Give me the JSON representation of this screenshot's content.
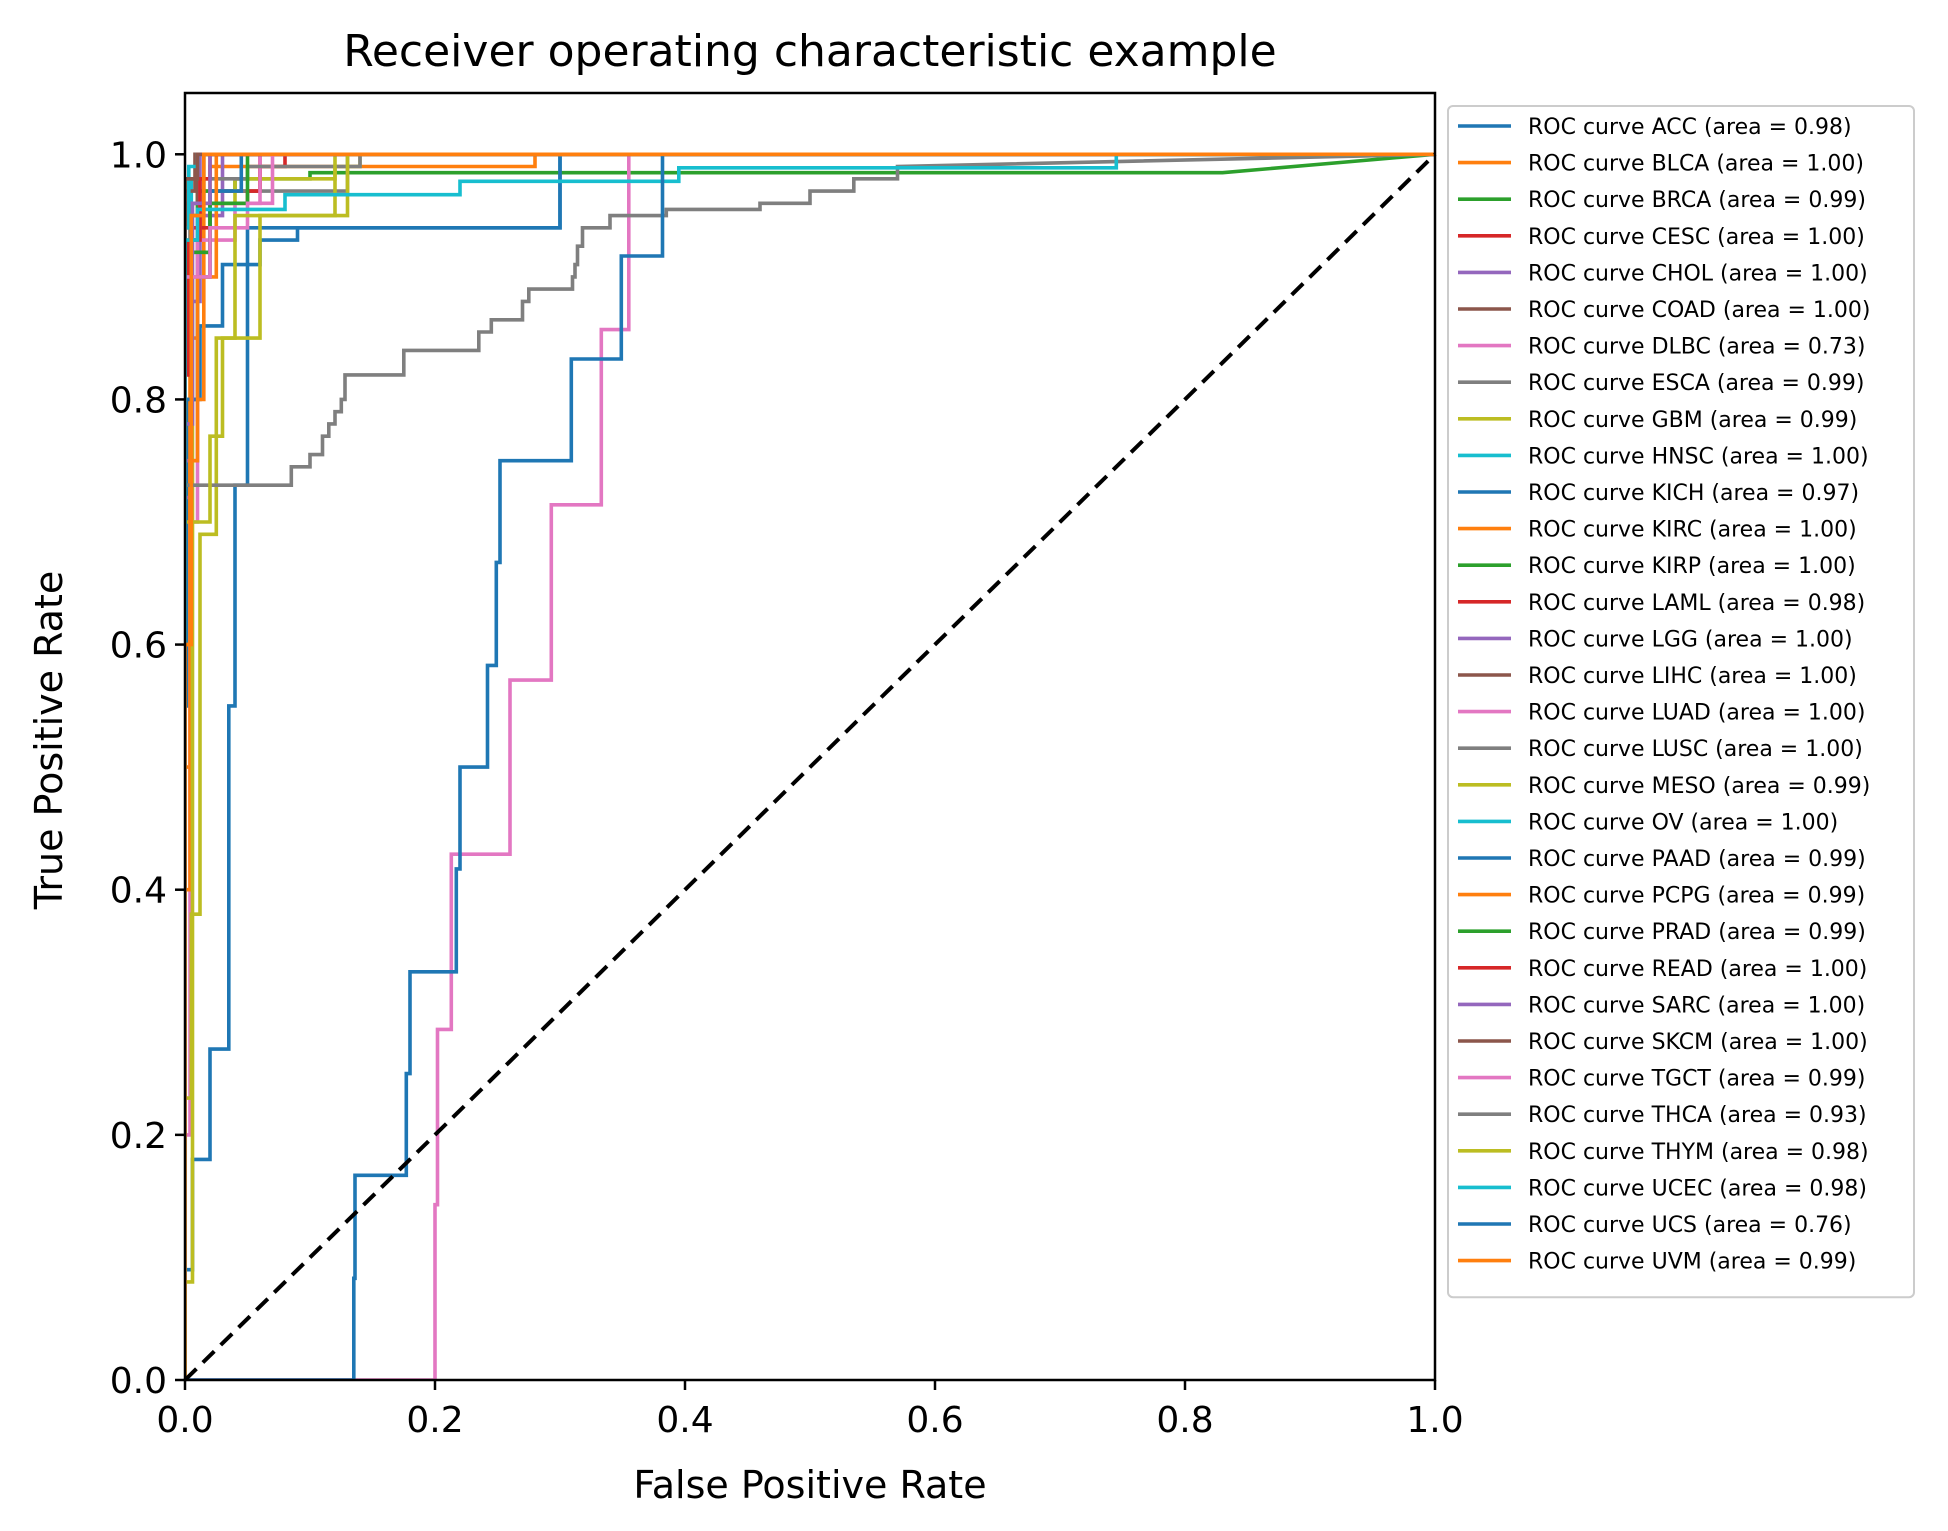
{
  "chart_data": {
    "type": "line",
    "title": "Receiver operating characteristic example",
    "xlabel": "False Positive Rate",
    "ylabel": "True Positive Rate",
    "xlim": [
      0.0,
      1.0
    ],
    "ylim": [
      0.0,
      1.05
    ],
    "xticks": [
      "0.0",
      "0.2",
      "0.4",
      "0.6",
      "0.8",
      "1.0"
    ],
    "yticks": [
      "0.0",
      "0.2",
      "0.4",
      "0.6",
      "0.8",
      "1.0"
    ],
    "grid": false,
    "legend_position": "outside-right",
    "reference_line": {
      "x": [
        0,
        1
      ],
      "y": [
        0,
        1
      ],
      "color": "#000000",
      "style": "dashed"
    },
    "series": [
      {
        "name": "ROC curve ACC (area = 0.98)",
        "color": "#1f77b4",
        "x": [
          0,
          0,
          0.003,
          0.003,
          0.012,
          0.012,
          0.03,
          0.03,
          0.06,
          0.06,
          0.09,
          0.09,
          0.3,
          0.3,
          1.0
        ],
        "y": [
          0,
          0.55,
          0.55,
          0.8,
          0.8,
          0.86,
          0.86,
          0.91,
          0.91,
          0.93,
          0.93,
          0.94,
          0.94,
          1.0,
          1.0
        ]
      },
      {
        "name": "ROC curve BLCA (area = 1.00)",
        "color": "#ff7f0e",
        "x": [
          0,
          0,
          0.004,
          0.004,
          0.01,
          0.01,
          0.02,
          0.02,
          0.28,
          0.28,
          1.0
        ],
        "y": [
          0,
          0.6,
          0.6,
          0.85,
          0.85,
          0.97,
          0.97,
          0.99,
          0.99,
          1.0,
          1.0
        ]
      },
      {
        "name": "ROC curve BRCA (area = 0.99)",
        "color": "#2ca02c",
        "x": [
          0,
          0,
          0.01,
          0.01,
          0.04,
          0.04,
          0.1,
          0.1,
          0.83,
          1.0
        ],
        "y": [
          0,
          0.95,
          0.95,
          0.97,
          0.97,
          0.98,
          0.98,
          0.985,
          0.985,
          1.0
        ]
      },
      {
        "name": "ROC curve CESC (area = 1.00)",
        "color": "#d62728",
        "x": [
          0,
          0,
          0.005,
          0.005,
          0.012,
          0.012,
          0.02,
          0.02,
          0.06,
          0.06,
          0.08,
          0.08,
          1.0
        ],
        "y": [
          0,
          0.88,
          0.88,
          0.93,
          0.93,
          0.96,
          0.96,
          0.97,
          0.97,
          0.99,
          0.99,
          1.0,
          1.0
        ]
      },
      {
        "name": "ROC curve CHOL (area = 1.00)",
        "color": "#9467bd",
        "x": [
          0,
          0,
          0.01,
          0.01,
          0.03,
          0.03,
          1.0
        ],
        "y": [
          0,
          0.75,
          0.75,
          0.95,
          0.95,
          1.0,
          1.0
        ]
      },
      {
        "name": "ROC curve COAD (area = 1.00)",
        "color": "#8c564b",
        "x": [
          0,
          0,
          0.01,
          0.01,
          1.0
        ],
        "y": [
          0,
          0.96,
          0.96,
          1.0,
          1.0
        ]
      },
      {
        "name": "ROC curve DLBC (area = 0.73)",
        "color": "#e377c2",
        "x": [
          0,
          0.2,
          0.2,
          0.202,
          0.202,
          0.213,
          0.213,
          0.26,
          0.26,
          0.293,
          0.293,
          0.333,
          0.333,
          0.355,
          0.355,
          1.0
        ],
        "y": [
          0,
          0,
          0.143,
          0.143,
          0.286,
          0.286,
          0.429,
          0.429,
          0.571,
          0.571,
          0.714,
          0.714,
          0.857,
          0.857,
          1.0,
          1.0
        ]
      },
      {
        "name": "ROC curve ESCA (area = 0.99)",
        "color": "#7f7f7f",
        "x": [
          0,
          0,
          0.005,
          0.005,
          0.02,
          0.02,
          0.13,
          0.13,
          1.0
        ],
        "y": [
          0,
          0.85,
          0.85,
          0.92,
          0.92,
          0.97,
          0.97,
          1.0,
          1.0
        ]
      },
      {
        "name": "ROC curve GBM (area = 0.99)",
        "color": "#bcbd22",
        "x": [
          0,
          0,
          0.006,
          0.006,
          0.02,
          0.02,
          0.04,
          0.04,
          0.12,
          0.12,
          0.14,
          0.14,
          1.0
        ],
        "y": [
          0,
          0.7,
          0.7,
          0.9,
          0.9,
          0.96,
          0.96,
          0.98,
          0.98,
          0.99,
          0.99,
          1.0,
          1.0
        ]
      },
      {
        "name": "ROC curve HNSC (area = 1.00)",
        "color": "#17becf",
        "x": [
          0,
          0,
          0.005,
          0.005,
          0.015,
          0.015,
          1.0
        ],
        "y": [
          0,
          0.95,
          0.95,
          0.98,
          0.98,
          1.0,
          1.0
        ]
      },
      {
        "name": "ROC curve KICH (area = 0.97)",
        "color": "#1f77b4",
        "x": [
          0,
          0,
          0.006,
          0.006,
          0.02,
          0.02,
          0.035,
          0.035,
          0.04,
          0.04,
          0.05,
          0.05,
          0.3,
          0.3,
          1.0
        ],
        "y": [
          0,
          0.09,
          0.09,
          0.18,
          0.18,
          0.27,
          0.27,
          0.55,
          0.55,
          0.73,
          0.73,
          0.94,
          0.94,
          1.0,
          1.0
        ]
      },
      {
        "name": "ROC curve KIRC (area = 1.00)",
        "color": "#ff7f0e",
        "x": [
          0,
          0,
          0.005,
          0.005,
          0.015,
          0.015,
          1.0
        ],
        "y": [
          0,
          0.5,
          0.5,
          0.8,
          0.8,
          1.0,
          1.0
        ]
      },
      {
        "name": "ROC curve KIRP (area = 1.00)",
        "color": "#2ca02c",
        "x": [
          0,
          0,
          0.01,
          0.01,
          1.0
        ],
        "y": [
          0,
          0.98,
          0.98,
          1.0,
          1.0
        ]
      },
      {
        "name": "ROC curve LAML (area = 0.98)",
        "color": "#d62728",
        "x": [
          0,
          0,
          0.02,
          0.02,
          0.05,
          0.05,
          0.06,
          0.06,
          1.0
        ],
        "y": [
          0,
          0.94,
          0.94,
          0.96,
          0.96,
          0.97,
          0.97,
          1.0,
          1.0
        ]
      },
      {
        "name": "ROC curve LGG (area = 1.00)",
        "color": "#9467bd",
        "x": [
          0,
          0,
          0.005,
          0.005,
          0.012,
          0.012,
          1.0
        ],
        "y": [
          0,
          0.72,
          0.72,
          0.88,
          0.88,
          1.0,
          1.0
        ]
      },
      {
        "name": "ROC curve LIHC (area = 1.00)",
        "color": "#8c564b",
        "x": [
          0,
          0,
          0.008,
          0.008,
          1.0
        ],
        "y": [
          0,
          0.97,
          0.97,
          1.0,
          1.0
        ]
      },
      {
        "name": "ROC curve LUAD (area = 1.00)",
        "color": "#e377c2",
        "x": [
          0,
          0,
          0.004,
          0.004,
          0.01,
          0.01,
          0.04,
          0.04,
          0.06,
          0.06,
          1.0
        ],
        "y": [
          0,
          0.2,
          0.2,
          0.7,
          0.7,
          0.93,
          0.93,
          0.96,
          0.96,
          1.0,
          1.0
        ]
      },
      {
        "name": "ROC curve LUSC (area = 1.00)",
        "color": "#7f7f7f",
        "x": [
          0,
          0,
          0.004,
          0.004,
          0.015,
          0.015,
          0.05,
          0.05,
          0.14,
          0.14,
          1.0
        ],
        "y": [
          0,
          0.9,
          0.9,
          0.96,
          0.96,
          0.98,
          0.98,
          0.99,
          0.99,
          1.0,
          1.0
        ]
      },
      {
        "name": "ROC curve MESO (area = 0.99)",
        "color": "#bcbd22",
        "x": [
          0,
          0,
          0.005,
          0.005,
          0.012,
          0.012,
          0.025,
          0.025,
          0.06,
          0.06,
          0.12,
          0.12,
          1.0
        ],
        "y": [
          0,
          0.23,
          0.23,
          0.38,
          0.38,
          0.69,
          0.69,
          0.85,
          0.85,
          0.95,
          0.95,
          1.0,
          1.0
        ]
      },
      {
        "name": "ROC curve OV (area = 1.00)",
        "color": "#17becf",
        "x": [
          0,
          0,
          0.003,
          0.003,
          0.01,
          0.01,
          1.0
        ],
        "y": [
          0,
          0.94,
          0.94,
          0.99,
          0.99,
          1.0,
          1.0
        ]
      },
      {
        "name": "ROC curve PAAD (area = 0.99)",
        "color": "#1f77b4",
        "x": [
          0,
          0,
          0.01,
          0.01,
          0.02,
          0.02,
          0.045,
          0.045,
          1.0
        ],
        "y": [
          0,
          0.8,
          0.8,
          0.9,
          0.9,
          0.97,
          0.97,
          1.0,
          1.0
        ]
      },
      {
        "name": "ROC curve PCPG (area = 0.99)",
        "color": "#ff7f0e",
        "x": [
          0,
          0,
          0.004,
          0.004,
          0.01,
          0.01,
          0.025,
          0.025,
          1.0
        ],
        "y": [
          0,
          0.4,
          0.4,
          0.75,
          0.75,
          0.9,
          0.9,
          1.0,
          1.0
        ]
      },
      {
        "name": "ROC curve PRAD (area = 0.99)",
        "color": "#2ca02c",
        "x": [
          0,
          0,
          0.02,
          0.02,
          0.05,
          0.05,
          1.0
        ],
        "y": [
          0,
          0.92,
          0.92,
          0.96,
          0.96,
          1.0,
          1.0
        ]
      },
      {
        "name": "ROC curve READ (area = 1.00)",
        "color": "#d62728",
        "x": [
          0,
          0,
          0.003,
          0.003,
          0.012,
          0.012,
          0.02,
          0.02,
          1.0
        ],
        "y": [
          0,
          0.82,
          0.82,
          0.93,
          0.93,
          0.98,
          0.98,
          1.0,
          1.0
        ]
      },
      {
        "name": "ROC curve SARC (area = 1.00)",
        "color": "#9467bd",
        "x": [
          0,
          0,
          0.006,
          0.006,
          0.02,
          0.02,
          1.0
        ],
        "y": [
          0,
          0.78,
          0.78,
          0.96,
          0.96,
          1.0,
          1.0
        ]
      },
      {
        "name": "ROC curve SKCM (area = 1.00)",
        "color": "#8c564b",
        "x": [
          0,
          0,
          0.01,
          0.01,
          1.0
        ],
        "y": [
          0,
          0.98,
          0.98,
          1.0,
          1.0
        ]
      },
      {
        "name": "ROC curve TGCT (area = 0.99)",
        "color": "#e377c2",
        "x": [
          0,
          0,
          0.02,
          0.02,
          0.05,
          0.05,
          0.07,
          0.07,
          1.0
        ],
        "y": [
          0,
          0.9,
          0.9,
          0.94,
          0.94,
          0.96,
          0.96,
          1.0,
          1.0
        ]
      },
      {
        "name": "ROC curve THCA (area = 0.93)",
        "color": "#7f7f7f",
        "x": [
          0,
          0,
          0.005,
          0.005,
          0.01,
          0.01,
          0.02,
          0.02,
          0.085,
          0.085,
          0.1,
          0.1,
          0.11,
          0.11,
          0.115,
          0.115,
          0.12,
          0.12,
          0.125,
          0.125,
          0.128,
          0.128,
          0.175,
          0.175,
          0.235,
          0.235,
          0.245,
          0.245,
          0.27,
          0.27,
          0.275,
          0.275,
          0.31,
          0.31,
          0.312,
          0.312,
          0.314,
          0.314,
          0.318,
          0.318,
          0.34,
          0.34,
          0.385,
          0.385,
          0.46,
          0.46,
          0.5,
          0.5,
          0.535,
          0.535,
          0.57,
          0.57,
          1.0
        ],
        "y": [
          0,
          0.73,
          0.73,
          0.73,
          0.73,
          0.73,
          0.73,
          0.73,
          0.73,
          0.745,
          0.745,
          0.755,
          0.755,
          0.77,
          0.77,
          0.78,
          0.78,
          0.79,
          0.79,
          0.8,
          0.8,
          0.82,
          0.82,
          0.84,
          0.84,
          0.855,
          0.855,
          0.865,
          0.865,
          0.88,
          0.88,
          0.89,
          0.89,
          0.9,
          0.9,
          0.91,
          0.91,
          0.925,
          0.925,
          0.94,
          0.94,
          0.95,
          0.95,
          0.955,
          0.955,
          0.96,
          0.96,
          0.97,
          0.97,
          0.98,
          0.98,
          0.99,
          1.0
        ]
      },
      {
        "name": "ROC curve THYM (area = 0.98)",
        "color": "#bcbd22",
        "x": [
          0,
          0,
          0.006,
          0.006,
          0.02,
          0.02,
          0.03,
          0.03,
          0.04,
          0.04,
          0.13,
          0.13,
          1.0
        ],
        "y": [
          0,
          0.08,
          0.08,
          0.7,
          0.7,
          0.77,
          0.77,
          0.85,
          0.85,
          0.95,
          0.95,
          1.0,
          1.0
        ]
      },
      {
        "name": "ROC curve UCEC (area = 0.98)",
        "color": "#17becf",
        "x": [
          0,
          0,
          0.01,
          0.01,
          0.08,
          0.08,
          0.22,
          0.22,
          0.395,
          0.395,
          0.745,
          0.745,
          1.0
        ],
        "y": [
          0,
          0.93,
          0.93,
          0.955,
          0.955,
          0.967,
          0.967,
          0.978,
          0.978,
          0.989,
          0.989,
          1.0,
          1.0
        ]
      },
      {
        "name": "ROC curve UCS (area = 0.76)",
        "color": "#1f77b4",
        "x": [
          0,
          0.135,
          0.135,
          0.136,
          0.136,
          0.177,
          0.177,
          0.18,
          0.18,
          0.217,
          0.217,
          0.22,
          0.22,
          0.225,
          0.225,
          0.242,
          0.242,
          0.249,
          0.249,
          0.25,
          0.25,
          0.252,
          0.252,
          0.309,
          0.309,
          0.349,
          0.349,
          0.382,
          0.382,
          1.0
        ],
        "y": [
          0,
          0,
          0.083,
          0.083,
          0.167,
          0.167,
          0.25,
          0.25,
          0.333,
          0.333,
          0.417,
          0.417,
          0.5,
          0.5,
          0.5,
          0.5,
          0.583,
          0.583,
          0.667,
          0.667,
          0.667,
          0.667,
          0.75,
          0.75,
          0.833,
          0.833,
          0.917,
          0.917,
          1.0,
          1.0
        ]
      },
      {
        "name": "ROC curve UVM (area = 0.99)",
        "color": "#ff7f0e",
        "x": [
          0,
          0,
          0.005,
          0.005,
          0.015,
          0.015,
          1.0
        ],
        "y": [
          0,
          0.6,
          0.6,
          0.95,
          0.95,
          1.0,
          1.0
        ]
      }
    ]
  }
}
